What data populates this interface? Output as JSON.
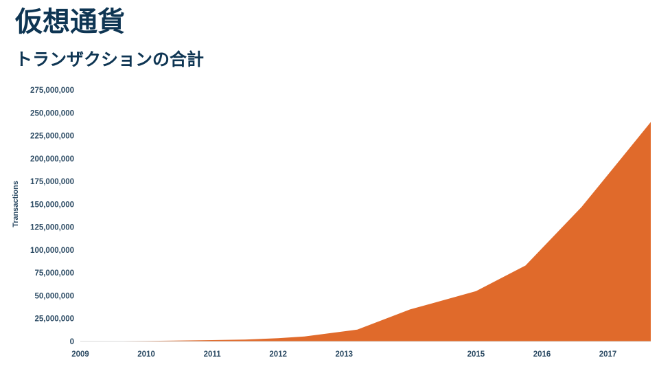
{
  "title": "仮想通貨",
  "subtitle": "トランザクションの合計",
  "colors": {
    "title": "#0e3553",
    "axis_text": "#2b4a63",
    "area_fill": "#e06a2b"
  },
  "chart_data": {
    "type": "area",
    "title": "",
    "xlabel": "",
    "ylabel": "Transactions",
    "x_ticks": [
      2009,
      2010,
      2011,
      2012,
      2013,
      2015,
      2016,
      2017
    ],
    "xlim": [
      2009,
      2017.65
    ],
    "ylim": [
      0,
      275000000
    ],
    "y_ticks": [
      {
        "value": 0,
        "label": "0"
      },
      {
        "value": 25000000,
        "label": "25,000,000"
      },
      {
        "value": 50000000,
        "label": "50,000,000"
      },
      {
        "value": 75000000,
        "label": "75,000,000"
      },
      {
        "value": 100000000,
        "label": "100,000,000"
      },
      {
        "value": 125000000,
        "label": "125,000,000"
      },
      {
        "value": 150000000,
        "label": "150,000,000"
      },
      {
        "value": 175000000,
        "label": "175,000,000"
      },
      {
        "value": 200000000,
        "label": "200,000,000"
      },
      {
        "value": 225000000,
        "label": "225,000,000"
      },
      {
        "value": 250000000,
        "label": "250,000,000"
      },
      {
        "value": 275000000,
        "label": "275,000,000"
      }
    ],
    "grid": false,
    "series": [
      {
        "x": [
          2009,
          2010,
          2011,
          2011.5,
          2012,
          2012.4,
          2013.2,
          2014,
          2015,
          2015.75,
          2016.6,
          2017.2,
          2017.65
        ],
        "values": [
          0,
          500000,
          1500000,
          2000000,
          3500000,
          5500000,
          13000000,
          35000000,
          55000000,
          83000000,
          147000000,
          200000000,
          240000000
        ]
      }
    ]
  }
}
